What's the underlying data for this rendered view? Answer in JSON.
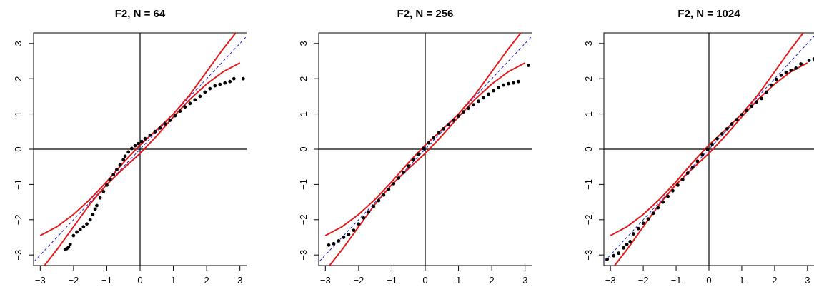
{
  "chart_data": [
    {
      "type": "scatter",
      "title": "F2, N = 64",
      "xlabel": "",
      "ylabel": "",
      "xlim": [
        -3.2,
        3.2
      ],
      "ylim": [
        -3.3,
        3.3
      ],
      "xticks": [
        "−3",
        "−2",
        "−1",
        "0",
        "1",
        "2",
        "3"
      ],
      "yticks": [
        "−3",
        "−2",
        "−1",
        "0",
        "1",
        "2",
        "3"
      ],
      "grid": false,
      "reference_lines": {
        "horizontal_at": 0,
        "vertical_at": 0,
        "identity_line": "dashed blue"
      },
      "envelope": {
        "upper": [
          [
            -3.0,
            -2.45
          ],
          [
            -2.5,
            -2.2
          ],
          [
            -2.0,
            -1.85
          ],
          [
            -1.5,
            -1.42
          ],
          [
            -1.0,
            -0.92
          ],
          [
            -0.5,
            -0.38
          ],
          [
            0.0,
            0.12
          ],
          [
            0.5,
            0.55
          ],
          [
            1.0,
            1.0
          ],
          [
            1.5,
            1.55
          ],
          [
            2.0,
            2.2
          ],
          [
            2.5,
            2.85
          ],
          [
            3.0,
            3.45
          ]
        ],
        "lower": [
          [
            -3.0,
            -3.45
          ],
          [
            -2.5,
            -2.85
          ],
          [
            -2.0,
            -2.2
          ],
          [
            -1.5,
            -1.55
          ],
          [
            -1.0,
            -1.0
          ],
          [
            -0.5,
            -0.55
          ],
          [
            0.0,
            -0.12
          ],
          [
            0.5,
            0.38
          ],
          [
            1.0,
            0.92
          ],
          [
            1.5,
            1.42
          ],
          [
            2.0,
            1.85
          ],
          [
            2.5,
            2.2
          ],
          [
            3.0,
            2.45
          ]
        ]
      },
      "series": [
        {
          "values": [
            [
              -2.25,
              -2.85
            ],
            [
              -2.2,
              -2.82
            ],
            [
              -2.15,
              -2.78
            ],
            [
              -2.1,
              -2.7
            ],
            [
              -2.0,
              -2.45
            ],
            [
              -1.9,
              -2.35
            ],
            [
              -1.8,
              -2.28
            ],
            [
              -1.7,
              -2.2
            ],
            [
              -1.6,
              -2.12
            ],
            [
              -1.5,
              -2.0
            ],
            [
              -1.42,
              -1.85
            ],
            [
              -1.35,
              -1.7
            ],
            [
              -1.3,
              -1.6
            ],
            [
              -1.2,
              -1.38
            ],
            [
              -1.1,
              -1.2
            ],
            [
              -1.0,
              -1.02
            ],
            [
              -0.9,
              -0.86
            ],
            [
              -0.8,
              -0.72
            ],
            [
              -0.7,
              -0.58
            ],
            [
              -0.6,
              -0.45
            ],
            [
              -0.5,
              -0.3
            ],
            [
              -0.45,
              -0.2
            ],
            [
              -0.35,
              -0.08
            ],
            [
              -0.25,
              0.02
            ],
            [
              -0.15,
              0.1
            ],
            [
              -0.05,
              0.16
            ],
            [
              0.05,
              0.22
            ],
            [
              0.15,
              0.3
            ],
            [
              0.3,
              0.4
            ],
            [
              0.45,
              0.5
            ],
            [
              0.6,
              0.6
            ],
            [
              0.75,
              0.72
            ],
            [
              0.9,
              0.82
            ],
            [
              1.05,
              0.95
            ],
            [
              1.2,
              1.08
            ],
            [
              1.35,
              1.2
            ],
            [
              1.5,
              1.3
            ],
            [
              1.65,
              1.4
            ],
            [
              1.8,
              1.5
            ],
            [
              1.95,
              1.62
            ],
            [
              2.1,
              1.72
            ],
            [
              2.25,
              1.8
            ],
            [
              2.4,
              1.84
            ],
            [
              2.55,
              1.88
            ],
            [
              2.7,
              1.92
            ],
            [
              2.82,
              2.0
            ],
            [
              3.1,
              2.0
            ]
          ]
        }
      ]
    },
    {
      "type": "scatter",
      "title": "F2, N = 256",
      "xlabel": "",
      "ylabel": "",
      "xlim": [
        -3.2,
        3.2
      ],
      "ylim": [
        -3.3,
        3.3
      ],
      "xticks": [
        "−3",
        "−2",
        "−1",
        "0",
        "1",
        "2",
        "3"
      ],
      "yticks": [
        "−3",
        "−2",
        "−1",
        "0",
        "1",
        "2",
        "3"
      ],
      "grid": false,
      "reference_lines": {
        "horizontal_at": 0,
        "vertical_at": 0,
        "identity_line": "dashed blue"
      },
      "envelope": {
        "upper": [
          [
            -3.0,
            -2.45
          ],
          [
            -2.5,
            -2.2
          ],
          [
            -2.0,
            -1.85
          ],
          [
            -1.5,
            -1.42
          ],
          [
            -1.0,
            -0.92
          ],
          [
            -0.5,
            -0.38
          ],
          [
            0.0,
            0.12
          ],
          [
            0.5,
            0.55
          ],
          [
            1.0,
            1.0
          ],
          [
            1.5,
            1.55
          ],
          [
            2.0,
            2.2
          ],
          [
            2.5,
            2.85
          ],
          [
            3.0,
            3.45
          ]
        ],
        "lower": [
          [
            -3.0,
            -3.45
          ],
          [
            -2.5,
            -2.85
          ],
          [
            -2.0,
            -2.2
          ],
          [
            -1.5,
            -1.55
          ],
          [
            -1.0,
            -1.0
          ],
          [
            -0.5,
            -0.55
          ],
          [
            0.0,
            -0.12
          ],
          [
            0.5,
            0.38
          ],
          [
            1.0,
            0.92
          ],
          [
            1.5,
            1.42
          ],
          [
            2.0,
            1.85
          ],
          [
            2.5,
            2.2
          ],
          [
            3.0,
            2.45
          ]
        ]
      },
      "series": [
        {
          "values": [
            [
              -2.9,
              -2.72
            ],
            [
              -2.75,
              -2.68
            ],
            [
              -2.6,
              -2.6
            ],
            [
              -2.45,
              -2.5
            ],
            [
              -2.3,
              -2.42
            ],
            [
              -2.15,
              -2.3
            ],
            [
              -2.0,
              -2.12
            ],
            [
              -1.85,
              -1.95
            ],
            [
              -1.7,
              -1.78
            ],
            [
              -1.55,
              -1.62
            ],
            [
              -1.4,
              -1.46
            ],
            [
              -1.25,
              -1.3
            ],
            [
              -1.1,
              -1.14
            ],
            [
              -0.95,
              -0.98
            ],
            [
              -0.8,
              -0.82
            ],
            [
              -0.65,
              -0.66
            ],
            [
              -0.5,
              -0.48
            ],
            [
              -0.35,
              -0.3
            ],
            [
              -0.2,
              -0.14
            ],
            [
              -0.05,
              0.02
            ],
            [
              0.1,
              0.18
            ],
            [
              0.25,
              0.32
            ],
            [
              0.4,
              0.46
            ],
            [
              0.55,
              0.58
            ],
            [
              0.7,
              0.7
            ],
            [
              0.85,
              0.82
            ],
            [
              1.0,
              0.94
            ],
            [
              1.15,
              1.06
            ],
            [
              1.3,
              1.16
            ],
            [
              1.45,
              1.26
            ],
            [
              1.6,
              1.36
            ],
            [
              1.75,
              1.46
            ],
            [
              1.9,
              1.56
            ],
            [
              2.05,
              1.66
            ],
            [
              2.2,
              1.75
            ],
            [
              2.35,
              1.82
            ],
            [
              2.5,
              1.86
            ],
            [
              2.65,
              1.88
            ],
            [
              2.8,
              1.92
            ],
            [
              3.1,
              2.38
            ]
          ]
        }
      ]
    },
    {
      "type": "scatter",
      "title": "F2, N = 1024",
      "xlabel": "",
      "ylabel": "",
      "xlim": [
        -3.2,
        3.2
      ],
      "ylim": [
        -3.3,
        3.3
      ],
      "xticks": [
        "−3",
        "−2",
        "−1",
        "0",
        "1",
        "2",
        "3"
      ],
      "yticks": [
        "−3",
        "−2",
        "−1",
        "0",
        "1",
        "2",
        "3"
      ],
      "grid": false,
      "reference_lines": {
        "horizontal_at": 0,
        "vertical_at": 0,
        "identity_line": "dashed blue"
      },
      "envelope": {
        "upper": [
          [
            -3.0,
            -2.45
          ],
          [
            -2.5,
            -2.2
          ],
          [
            -2.0,
            -1.85
          ],
          [
            -1.5,
            -1.42
          ],
          [
            -1.0,
            -0.92
          ],
          [
            -0.5,
            -0.38
          ],
          [
            0.0,
            0.12
          ],
          [
            0.5,
            0.55
          ],
          [
            1.0,
            1.0
          ],
          [
            1.5,
            1.55
          ],
          [
            2.0,
            2.2
          ],
          [
            2.5,
            2.85
          ],
          [
            3.0,
            3.45
          ]
        ],
        "lower": [
          [
            -3.0,
            -3.45
          ],
          [
            -2.5,
            -2.85
          ],
          [
            -2.0,
            -2.2
          ],
          [
            -1.5,
            -1.55
          ],
          [
            -1.0,
            -1.0
          ],
          [
            -0.5,
            -0.55
          ],
          [
            0.0,
            -0.12
          ],
          [
            0.5,
            0.38
          ],
          [
            1.0,
            0.92
          ],
          [
            1.5,
            1.42
          ],
          [
            2.0,
            1.85
          ],
          [
            2.5,
            2.2
          ],
          [
            3.0,
            2.45
          ]
        ]
      },
      "series": [
        {
          "values": [
            [
              -3.1,
              -3.12
            ],
            [
              -2.9,
              -3.02
            ],
            [
              -2.75,
              -2.95
            ],
            [
              -2.6,
              -2.8
            ],
            [
              -2.5,
              -2.7
            ],
            [
              -2.4,
              -2.62
            ],
            [
              -2.3,
              -2.4
            ],
            [
              -2.15,
              -2.25
            ],
            [
              -2.0,
              -2.1
            ],
            [
              -1.85,
              -1.98
            ],
            [
              -1.7,
              -1.82
            ],
            [
              -1.55,
              -1.66
            ],
            [
              -1.4,
              -1.5
            ],
            [
              -1.25,
              -1.34
            ],
            [
              -1.1,
              -1.18
            ],
            [
              -0.95,
              -1.02
            ],
            [
              -0.8,
              -0.86
            ],
            [
              -0.65,
              -0.68
            ],
            [
              -0.5,
              -0.52
            ],
            [
              -0.35,
              -0.34
            ],
            [
              -0.2,
              -0.16
            ],
            [
              -0.05,
              0.0
            ],
            [
              0.1,
              0.14
            ],
            [
              0.25,
              0.3
            ],
            [
              0.4,
              0.44
            ],
            [
              0.55,
              0.58
            ],
            [
              0.7,
              0.72
            ],
            [
              0.85,
              0.84
            ],
            [
              1.0,
              0.98
            ],
            [
              1.15,
              1.1
            ],
            [
              1.3,
              1.22
            ],
            [
              1.45,
              1.34
            ],
            [
              1.6,
              1.44
            ],
            [
              1.75,
              1.62
            ],
            [
              1.9,
              1.82
            ],
            [
              2.05,
              1.98
            ],
            [
              2.2,
              2.1
            ],
            [
              2.35,
              2.18
            ],
            [
              2.5,
              2.24
            ],
            [
              2.65,
              2.3
            ],
            [
              2.8,
              2.42
            ],
            [
              3.05,
              2.52
            ],
            [
              3.2,
              2.56
            ]
          ]
        }
      ]
    }
  ]
}
